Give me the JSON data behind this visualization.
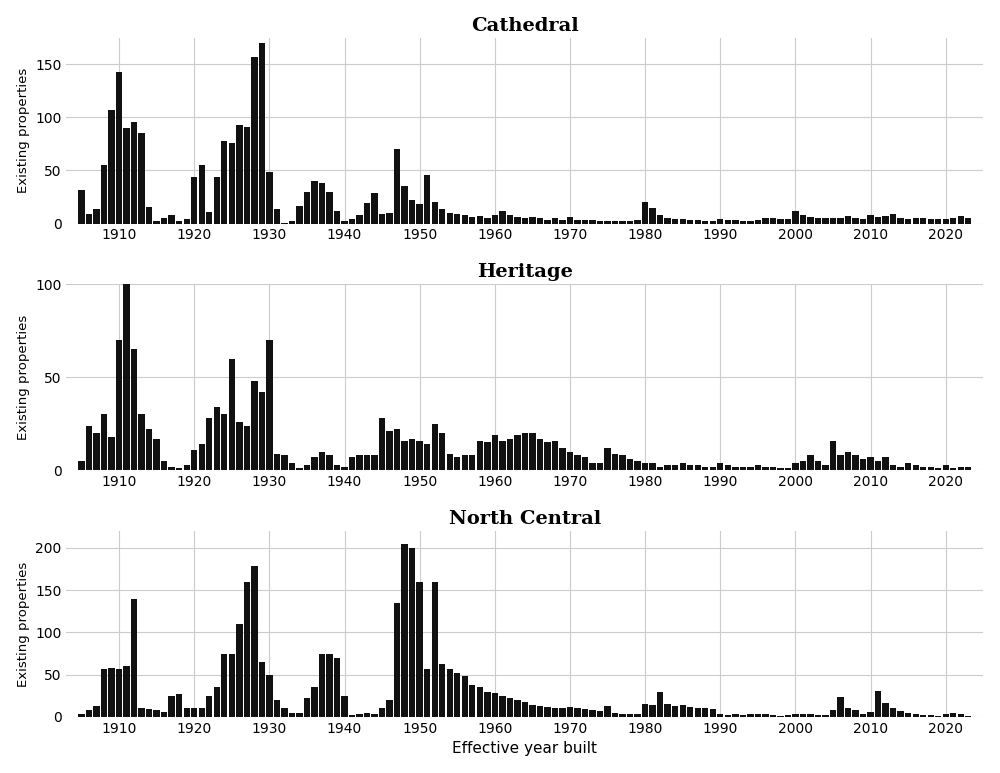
{
  "title_font": "DejaVu Serif",
  "title_fontsize": 14,
  "titles": [
    "Cathedral",
    "Heritage",
    "North Central"
  ],
  "ylabel": "Existing properties",
  "xlabel": "Effective year built",
  "background_color": "#ffffff",
  "grid_color": "#cccccc",
  "bar_color": "#111111",
  "cathedral": {
    "years": [
      1905,
      1906,
      1907,
      1908,
      1909,
      1910,
      1911,
      1912,
      1913,
      1914,
      1915,
      1916,
      1917,
      1918,
      1919,
      1920,
      1921,
      1922,
      1923,
      1924,
      1925,
      1926,
      1927,
      1928,
      1929,
      1930,
      1931,
      1932,
      1933,
      1934,
      1935,
      1936,
      1937,
      1938,
      1939,
      1940,
      1941,
      1942,
      1943,
      1944,
      1945,
      1946,
      1947,
      1948,
      1949,
      1950,
      1951,
      1952,
      1953,
      1954,
      1955,
      1956,
      1957,
      1958,
      1959,
      1960,
      1961,
      1962,
      1963,
      1964,
      1965,
      1966,
      1967,
      1968,
      1969,
      1970,
      1971,
      1972,
      1973,
      1974,
      1975,
      1976,
      1977,
      1978,
      1979,
      1980,
      1981,
      1982,
      1983,
      1984,
      1985,
      1986,
      1987,
      1988,
      1989,
      1990,
      1991,
      1992,
      1993,
      1994,
      1995,
      1996,
      1997,
      1998,
      1999,
      2000,
      2001,
      2002,
      2003,
      2004,
      2005,
      2006,
      2007,
      2008,
      2009,
      2010,
      2011,
      2012,
      2013,
      2014,
      2015,
      2016,
      2017,
      2018,
      2019,
      2020,
      2021,
      2022,
      2023
    ],
    "values": [
      32,
      9,
      14,
      55,
      107,
      143,
      90,
      96,
      85,
      16,
      2,
      5,
      8,
      2,
      4,
      44,
      55,
      11,
      44,
      78,
      76,
      93,
      91,
      157,
      170,
      49,
      14,
      1,
      2,
      17,
      30,
      40,
      38,
      30,
      12,
      2,
      4,
      8,
      19,
      29,
      9,
      10,
      70,
      35,
      22,
      18,
      46,
      20,
      14,
      10,
      9,
      8,
      6,
      7,
      5,
      8,
      12,
      8,
      6,
      5,
      6,
      5,
      3,
      5,
      3,
      6,
      3,
      3,
      3,
      2,
      2,
      2,
      2,
      2,
      3,
      20,
      15,
      8,
      5,
      4,
      4,
      3,
      3,
      2,
      2,
      4,
      3,
      3,
      2,
      2,
      3,
      5,
      5,
      4,
      4,
      12,
      8,
      6,
      5,
      5,
      5,
      5,
      7,
      5,
      4,
      8,
      6,
      7,
      9,
      5,
      4,
      5,
      5,
      4,
      4,
      4,
      5,
      7,
      5
    ]
  },
  "heritage": {
    "years": [
      1905,
      1906,
      1907,
      1908,
      1909,
      1910,
      1911,
      1912,
      1913,
      1914,
      1915,
      1916,
      1917,
      1918,
      1919,
      1920,
      1921,
      1922,
      1923,
      1924,
      1925,
      1926,
      1927,
      1928,
      1929,
      1930,
      1931,
      1932,
      1933,
      1934,
      1935,
      1936,
      1937,
      1938,
      1939,
      1940,
      1941,
      1942,
      1943,
      1944,
      1945,
      1946,
      1947,
      1948,
      1949,
      1950,
      1951,
      1952,
      1953,
      1954,
      1955,
      1956,
      1957,
      1958,
      1959,
      1960,
      1961,
      1962,
      1963,
      1964,
      1965,
      1966,
      1967,
      1968,
      1969,
      1970,
      1971,
      1972,
      1973,
      1974,
      1975,
      1976,
      1977,
      1978,
      1979,
      1980,
      1981,
      1982,
      1983,
      1984,
      1985,
      1986,
      1987,
      1988,
      1989,
      1990,
      1991,
      1992,
      1993,
      1994,
      1995,
      1996,
      1997,
      1998,
      1999,
      2000,
      2001,
      2002,
      2003,
      2004,
      2005,
      2006,
      2007,
      2008,
      2009,
      2010,
      2011,
      2012,
      2013,
      2014,
      2015,
      2016,
      2017,
      2018,
      2019,
      2020,
      2021,
      2022,
      2023
    ],
    "values": [
      5,
      24,
      20,
      30,
      18,
      70,
      100,
      65,
      30,
      22,
      17,
      5,
      2,
      1,
      3,
      11,
      14,
      28,
      34,
      30,
      60,
      26,
      24,
      48,
      42,
      70,
      9,
      8,
      4,
      1,
      3,
      7,
      10,
      8,
      3,
      2,
      7,
      8,
      8,
      8,
      28,
      21,
      22,
      16,
      17,
      16,
      14,
      25,
      20,
      9,
      7,
      8,
      8,
      16,
      15,
      19,
      16,
      17,
      19,
      20,
      20,
      17,
      15,
      16,
      12,
      10,
      8,
      7,
      4,
      4,
      12,
      9,
      8,
      6,
      5,
      4,
      4,
      2,
      3,
      3,
      4,
      3,
      3,
      2,
      2,
      4,
      3,
      2,
      2,
      2,
      3,
      2,
      2,
      1,
      1,
      4,
      5,
      8,
      5,
      3,
      16,
      8,
      10,
      8,
      6,
      7,
      5,
      7,
      3,
      2,
      4,
      3,
      2,
      2,
      1,
      3,
      1,
      2,
      2
    ]
  },
  "north_central": {
    "years": [
      1905,
      1906,
      1907,
      1908,
      1909,
      1910,
      1911,
      1912,
      1913,
      1914,
      1915,
      1916,
      1917,
      1918,
      1919,
      1920,
      1921,
      1922,
      1923,
      1924,
      1925,
      1926,
      1927,
      1928,
      1929,
      1930,
      1931,
      1932,
      1933,
      1934,
      1935,
      1936,
      1937,
      1938,
      1939,
      1940,
      1941,
      1942,
      1943,
      1944,
      1945,
      1946,
      1947,
      1948,
      1949,
      1950,
      1951,
      1952,
      1953,
      1954,
      1955,
      1956,
      1957,
      1958,
      1959,
      1960,
      1961,
      1962,
      1963,
      1964,
      1965,
      1966,
      1967,
      1968,
      1969,
      1970,
      1971,
      1972,
      1973,
      1974,
      1975,
      1976,
      1977,
      1978,
      1979,
      1980,
      1981,
      1982,
      1983,
      1984,
      1985,
      1986,
      1987,
      1988,
      1989,
      1990,
      1991,
      1992,
      1993,
      1994,
      1995,
      1996,
      1997,
      1998,
      1999,
      2000,
      2001,
      2002,
      2003,
      2004,
      2005,
      2006,
      2007,
      2008,
      2009,
      2010,
      2011,
      2012,
      2013,
      2014,
      2015,
      2016,
      2017,
      2018,
      2019,
      2020,
      2021,
      2022,
      2023
    ],
    "values": [
      3,
      8,
      13,
      57,
      58,
      57,
      60,
      140,
      10,
      9,
      8,
      6,
      25,
      27,
      11,
      10,
      10,
      25,
      35,
      75,
      75,
      110,
      160,
      178,
      65,
      50,
      20,
      10,
      5,
      5,
      22,
      35,
      75,
      75,
      70,
      25,
      2,
      4,
      5,
      3,
      10,
      20,
      135,
      205,
      200,
      160,
      57,
      160,
      62,
      57,
      52,
      48,
      38,
      35,
      30,
      28,
      25,
      22,
      20,
      18,
      14,
      13,
      12,
      11,
      10,
      12,
      10,
      9,
      8,
      7,
      13,
      5,
      4,
      3,
      3,
      15,
      14,
      30,
      15,
      13,
      14,
      12,
      11,
      10,
      9,
      4,
      2,
      3,
      2,
      3,
      4,
      3,
      2,
      1,
      2,
      3,
      4,
      4,
      2,
      2,
      8,
      24,
      10,
      8,
      4,
      6,
      31,
      17,
      10,
      7,
      5,
      3,
      2,
      2,
      1,
      4,
      5,
      3,
      1
    ]
  },
  "xlim": [
    1903,
    2025
  ],
  "xticks": [
    1910,
    1920,
    1930,
    1940,
    1950,
    1960,
    1970,
    1980,
    1990,
    2000,
    2010,
    2020
  ],
  "cathedral_ylim": [
    0,
    175
  ],
  "heritage_ylim": [
    0,
    100
  ],
  "north_central_ylim": [
    0,
    220
  ],
  "cathedral_yticks": [
    0,
    50,
    100,
    150
  ],
  "heritage_yticks": [
    0,
    50,
    100
  ],
  "north_central_yticks": [
    0,
    50,
    100,
    150,
    200
  ]
}
